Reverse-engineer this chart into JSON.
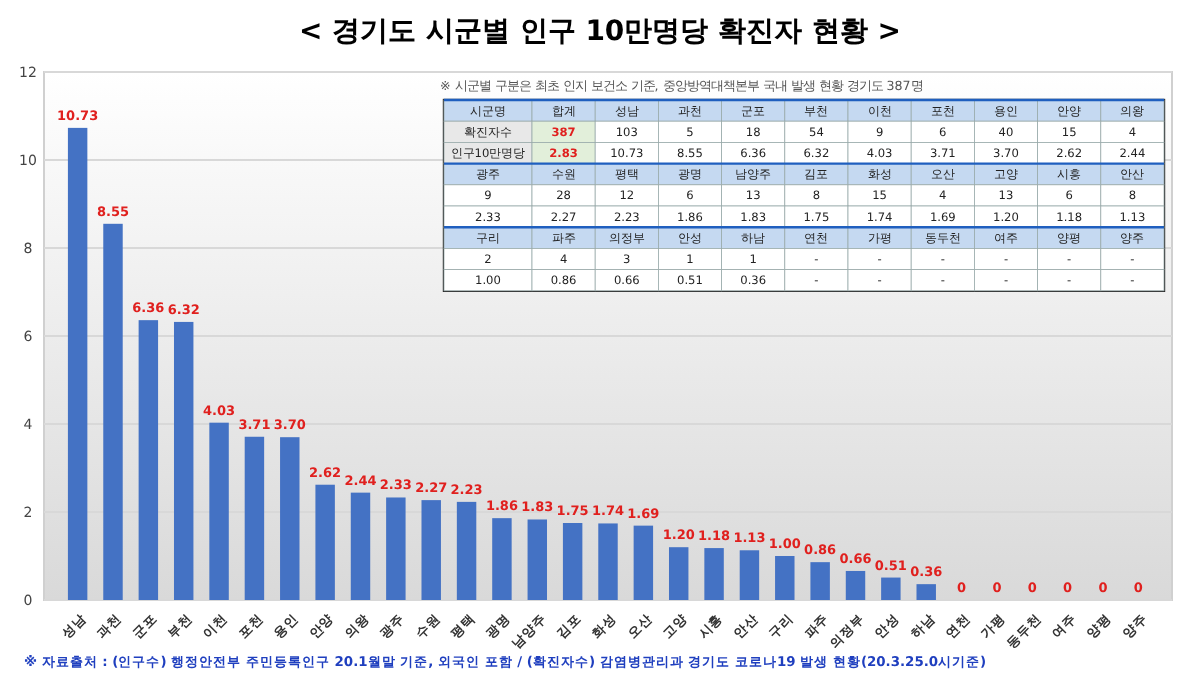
{
  "chart_data": [
    {
      "type": "bar",
      "title": "< 경기도 시군별 인구 10만명당 확진자 현황 >",
      "categories": [
        "성남",
        "과천",
        "군포",
        "부천",
        "이천",
        "포천",
        "용인",
        "안양",
        "의왕",
        "광주",
        "수원",
        "평택",
        "광명",
        "남양주",
        "김포",
        "화성",
        "오산",
        "고양",
        "시흥",
        "안산",
        "구리",
        "파주",
        "의정부",
        "안성",
        "하남",
        "연천",
        "가평",
        "동두천",
        "여주",
        "양평",
        "양주"
      ],
      "values": [
        10.73,
        8.55,
        6.36,
        6.32,
        4.03,
        3.71,
        3.7,
        2.62,
        2.44,
        2.33,
        2.27,
        2.23,
        1.86,
        1.83,
        1.75,
        1.74,
        1.69,
        1.2,
        1.18,
        1.13,
        1.0,
        0.86,
        0.66,
        0.51,
        0.36,
        0,
        0,
        0,
        0,
        0,
        0
      ],
      "value_labels": [
        "10.73",
        "8.55",
        "6.36",
        "6.32",
        "4.03",
        "3.71",
        "3.70",
        "2.62",
        "2.44",
        "2.33",
        "2.27",
        "2.23",
        "1.86",
        "1.83",
        "1.75",
        "1.74",
        "1.69",
        "1.20",
        "1.18",
        "1.13",
        "1.00",
        "0.86",
        "0.66",
        "0.51",
        "0.36",
        "0",
        "0",
        "0",
        "0",
        "0",
        "0"
      ],
      "color": "#4472c4",
      "ylim": [
        0,
        12
      ],
      "yticks": [
        0,
        2,
        4,
        6,
        8,
        10,
        12
      ],
      "grid": "y",
      "annotations": [
        "※ 자료출처 : (인구수) 행정안전부 주민등록인구 20.1월말 기준, 외국인 포함 / (확진자수) 감염병관리과 경기도 코로나19 발생 현황(20.3.25.0시기준)"
      ]
    },
    {
      "type": "other",
      "title": "※ 시군별 구분은 최초 인지 보건소 기준, 중앙방역대책본부 국내 발생 현황 경기도 387명",
      "annotations": [
        "시군명",
        "합계",
        "성남",
        "과천",
        "군포",
        "부천",
        "이천",
        "포천",
        "용인",
        "안양",
        "의왕",
        "확진자수",
        "387",
        "103",
        "5",
        "18",
        "54",
        "9",
        "6",
        "40",
        "15",
        "4",
        "인구10만명당",
        "2.83",
        "10.73",
        "8.55",
        "6.36",
        "6.32",
        "4.03",
        "3.71",
        "3.70",
        "2.62",
        "2.44",
        "광주",
        "수원",
        "평택",
        "광명",
        "남양주",
        "김포",
        "화성",
        "오산",
        "고양",
        "시흥",
        "안산",
        "9",
        "28",
        "12",
        "6",
        "13",
        "8",
        "15",
        "4",
        "13",
        "6",
        "8",
        "2.33",
        "2.27",
        "2.23",
        "1.86",
        "1.83",
        "1.75",
        "1.74",
        "1.69",
        "1.20",
        "1.18",
        "1.13",
        "구리",
        "파주",
        "의정부",
        "안성",
        "하남",
        "연천",
        "가평",
        "동두천",
        "여주",
        "양평",
        "양주",
        "2",
        "4",
        "3",
        "1",
        "1",
        "-",
        "-",
        "-",
        "-",
        "-",
        "-",
        "1.00",
        "0.86",
        "0.66",
        "0.51",
        "0.36",
        "-",
        "-",
        "-",
        "-",
        "-",
        "-"
      ]
    }
  ]
}
